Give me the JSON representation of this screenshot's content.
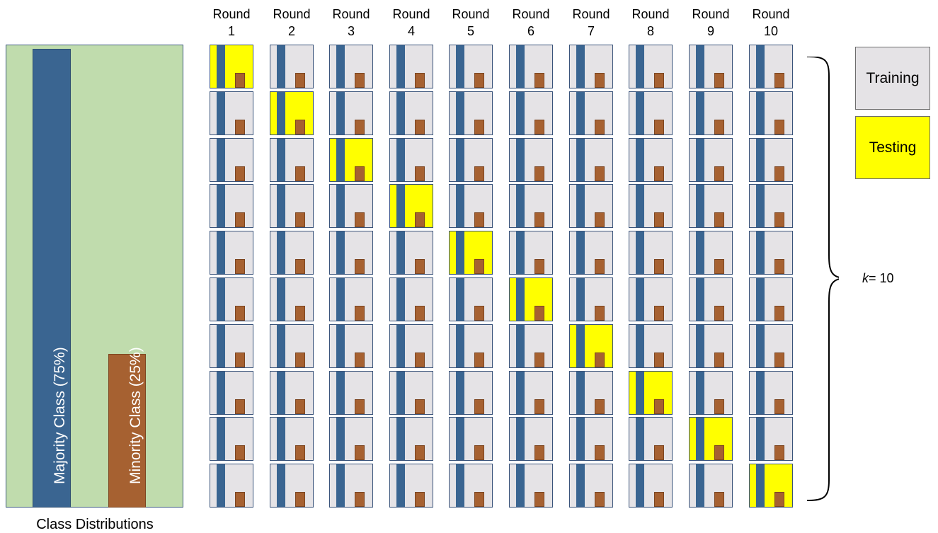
{
  "distribution": {
    "majority_label": "Majority Class (75%)",
    "minority_label": "Minority Class (25%)",
    "majority_share": 0.75,
    "minority_share": 0.25,
    "caption": "Class Distributions"
  },
  "rounds": [
    {
      "line1": "Round",
      "line2": "1"
    },
    {
      "line1": "Round",
      "line2": "2"
    },
    {
      "line1": "Round",
      "line2": "3"
    },
    {
      "line1": "Round",
      "line2": "4"
    },
    {
      "line1": "Round",
      "line2": "5"
    },
    {
      "line1": "Round",
      "line2": "6"
    },
    {
      "line1": "Round",
      "line2": "7"
    },
    {
      "line1": "Round",
      "line2": "8"
    },
    {
      "line1": "Round",
      "line2": "9"
    },
    {
      "line1": "Round",
      "line2": "10"
    }
  ],
  "folds": 10,
  "k_label": {
    "var": "k",
    "text": "= 10"
  },
  "legend": {
    "training": "Training",
    "testing": "Testing"
  },
  "colors": {
    "training": "#e5e3e6",
    "testing": "#ffff00",
    "majority": "#3a6591",
    "minority": "#a66131",
    "background": "#c0dcad"
  }
}
